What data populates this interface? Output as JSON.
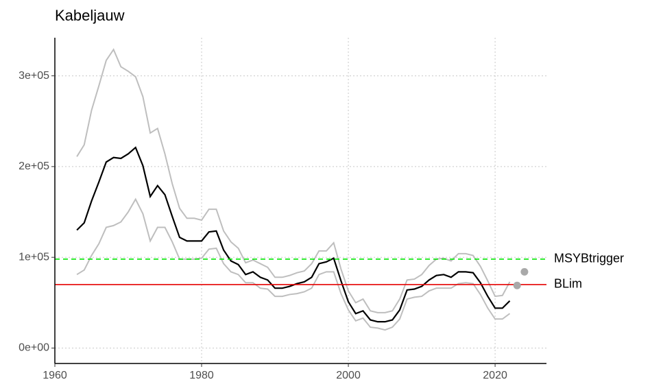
{
  "chart_data": {
    "type": "line",
    "title": "Kabeljauw",
    "x": [
      1963,
      1964,
      1965,
      1966,
      1967,
      1968,
      1969,
      1970,
      1971,
      1972,
      1973,
      1974,
      1975,
      1976,
      1977,
      1978,
      1979,
      1980,
      1981,
      1982,
      1983,
      1984,
      1985,
      1986,
      1987,
      1988,
      1989,
      1990,
      1991,
      1992,
      1993,
      1994,
      1995,
      1996,
      1997,
      1998,
      1999,
      2000,
      2001,
      2002,
      2003,
      2004,
      2005,
      2006,
      2007,
      2008,
      2009,
      2010,
      2011,
      2012,
      2013,
      2014,
      2015,
      2016,
      2017,
      2018,
      2019,
      2020,
      2021,
      2022
    ],
    "series": [
      {
        "color": "#bebebe",
        "values": [
          211000,
          224000,
          262000,
          289000,
          317000,
          329000,
          310000,
          305000,
          299000,
          277000,
          237000,
          242000,
          214000,
          181000,
          154000,
          143000,
          143000,
          141000,
          153000,
          153000,
          129000,
          117000,
          110000,
          94000,
          97000,
          93000,
          89000,
          78000,
          78000,
          80000,
          83000,
          85000,
          93000,
          107000,
          107000,
          116000,
          87000,
          63000,
          50000,
          54000,
          41000,
          39000,
          39000,
          41000,
          54000,
          75000,
          76000,
          81000,
          91000,
          98000,
          99000,
          96000,
          104000,
          104000,
          102000,
          90000,
          74000,
          57000,
          58000,
          73000
        ]
      },
      {
        "color": "#bebebe",
        "values": [
          81000,
          86000,
          102000,
          115000,
          133000,
          135000,
          139000,
          150000,
          164000,
          148000,
          118000,
          133000,
          133000,
          117000,
          98000,
          98000,
          98000,
          99000,
          109000,
          110000,
          93000,
          84000,
          81000,
          72000,
          72000,
          66000,
          65000,
          57000,
          57000,
          59000,
          60000,
          62000,
          66000,
          81000,
          84000,
          84000,
          60000,
          42000,
          30000,
          33000,
          23000,
          22000,
          20000,
          23000,
          32000,
          54000,
          56000,
          57000,
          63000,
          66000,
          66000,
          66000,
          71000,
          72000,
          71000,
          59000,
          44000,
          32000,
          32000,
          38000
        ]
      },
      {
        "color": "#000000",
        "values": [
          130000,
          138000,
          162000,
          183000,
          205000,
          210000,
          209000,
          214000,
          221000,
          201000,
          167000,
          179000,
          169000,
          145000,
          122000,
          118000,
          118000,
          118000,
          128000,
          129000,
          108000,
          96000,
          92000,
          81000,
          84000,
          78000,
          75000,
          66000,
          66000,
          68000,
          71000,
          73000,
          78000,
          93000,
          95000,
          99000,
          74000,
          51000,
          38000,
          41000,
          31000,
          29000,
          29000,
          31000,
          42000,
          64000,
          65000,
          68000,
          75000,
          80000,
          81000,
          78000,
          84000,
          84000,
          83000,
          72000,
          57000,
          44000,
          44000,
          52000
        ]
      }
    ],
    "points": {
      "x": [
        2023,
        2024
      ],
      "values": [
        69000,
        84000
      ],
      "color": "#a9a9a9"
    },
    "hlines": [
      {
        "label": "MSYBtrigger",
        "value": 98000,
        "color": "#00e600",
        "dashed": true
      },
      {
        "label": "BLim",
        "value": 70000,
        "color": "#e60000",
        "dashed": false
      }
    ],
    "xlim": [
      1960,
      2027
    ],
    "ylim": [
      -17000,
      342000
    ],
    "xticks": [
      1960,
      1980,
      2000,
      2020
    ],
    "yticks": [
      {
        "value": 0,
        "label": "0e+00"
      },
      {
        "value": 100000,
        "label": "1e+05"
      },
      {
        "value": 200000,
        "label": "2e+05"
      },
      {
        "value": 300000,
        "label": "3e+05"
      }
    ],
    "grid": true
  }
}
